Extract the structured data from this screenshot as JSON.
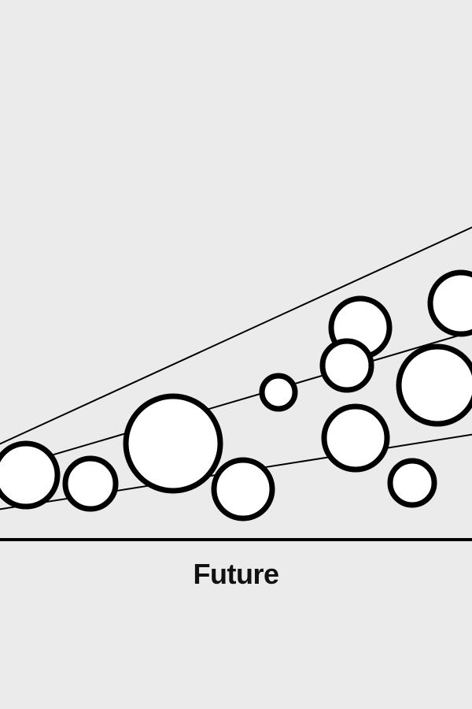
{
  "diagram": {
    "axis_label": "Future",
    "colors": {
      "background": "#ebebeb",
      "stroke": "#000000",
      "fill": "#ffffff"
    }
  }
}
